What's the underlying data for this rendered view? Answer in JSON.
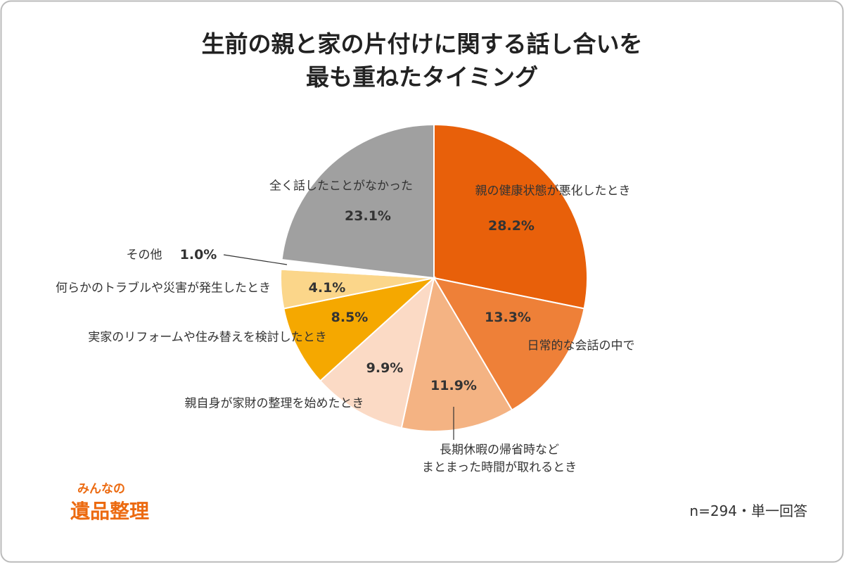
{
  "chart_data": {
    "type": "pie",
    "title": "生前の親と家の片付けに関する話し合いを\n最も重ねたタイミング",
    "categories": [
      "親の健康状態が悪化したとき",
      "日常的な会話の中で",
      "長期休暇の帰省時など\nまとまった時間が取れるとき",
      "親自身が家財の整理を始めたとき",
      "実家のリフォームや住み替えを検討したとき",
      "何らかのトラブルや災害が発生したとき",
      "その他",
      "全く話したことがなかった"
    ],
    "values": [
      28.2,
      13.3,
      11.9,
      9.9,
      8.5,
      4.1,
      1.0,
      23.1
    ],
    "value_labels": [
      "28.2%",
      "13.3%",
      "11.9%",
      "9.9%",
      "8.5%",
      "4.1%",
      "1.0%",
      "23.1%"
    ],
    "colors": [
      "#e8600a",
      "#ee8038",
      "#f4b383",
      "#fbdac5",
      "#f5a800",
      "#fbd68a",
      "#ffffff",
      "#a0a0a0"
    ],
    "note": "n=294・単一回答"
  },
  "logo": {
    "top": "みんなの",
    "bottom": "遺品整理"
  }
}
